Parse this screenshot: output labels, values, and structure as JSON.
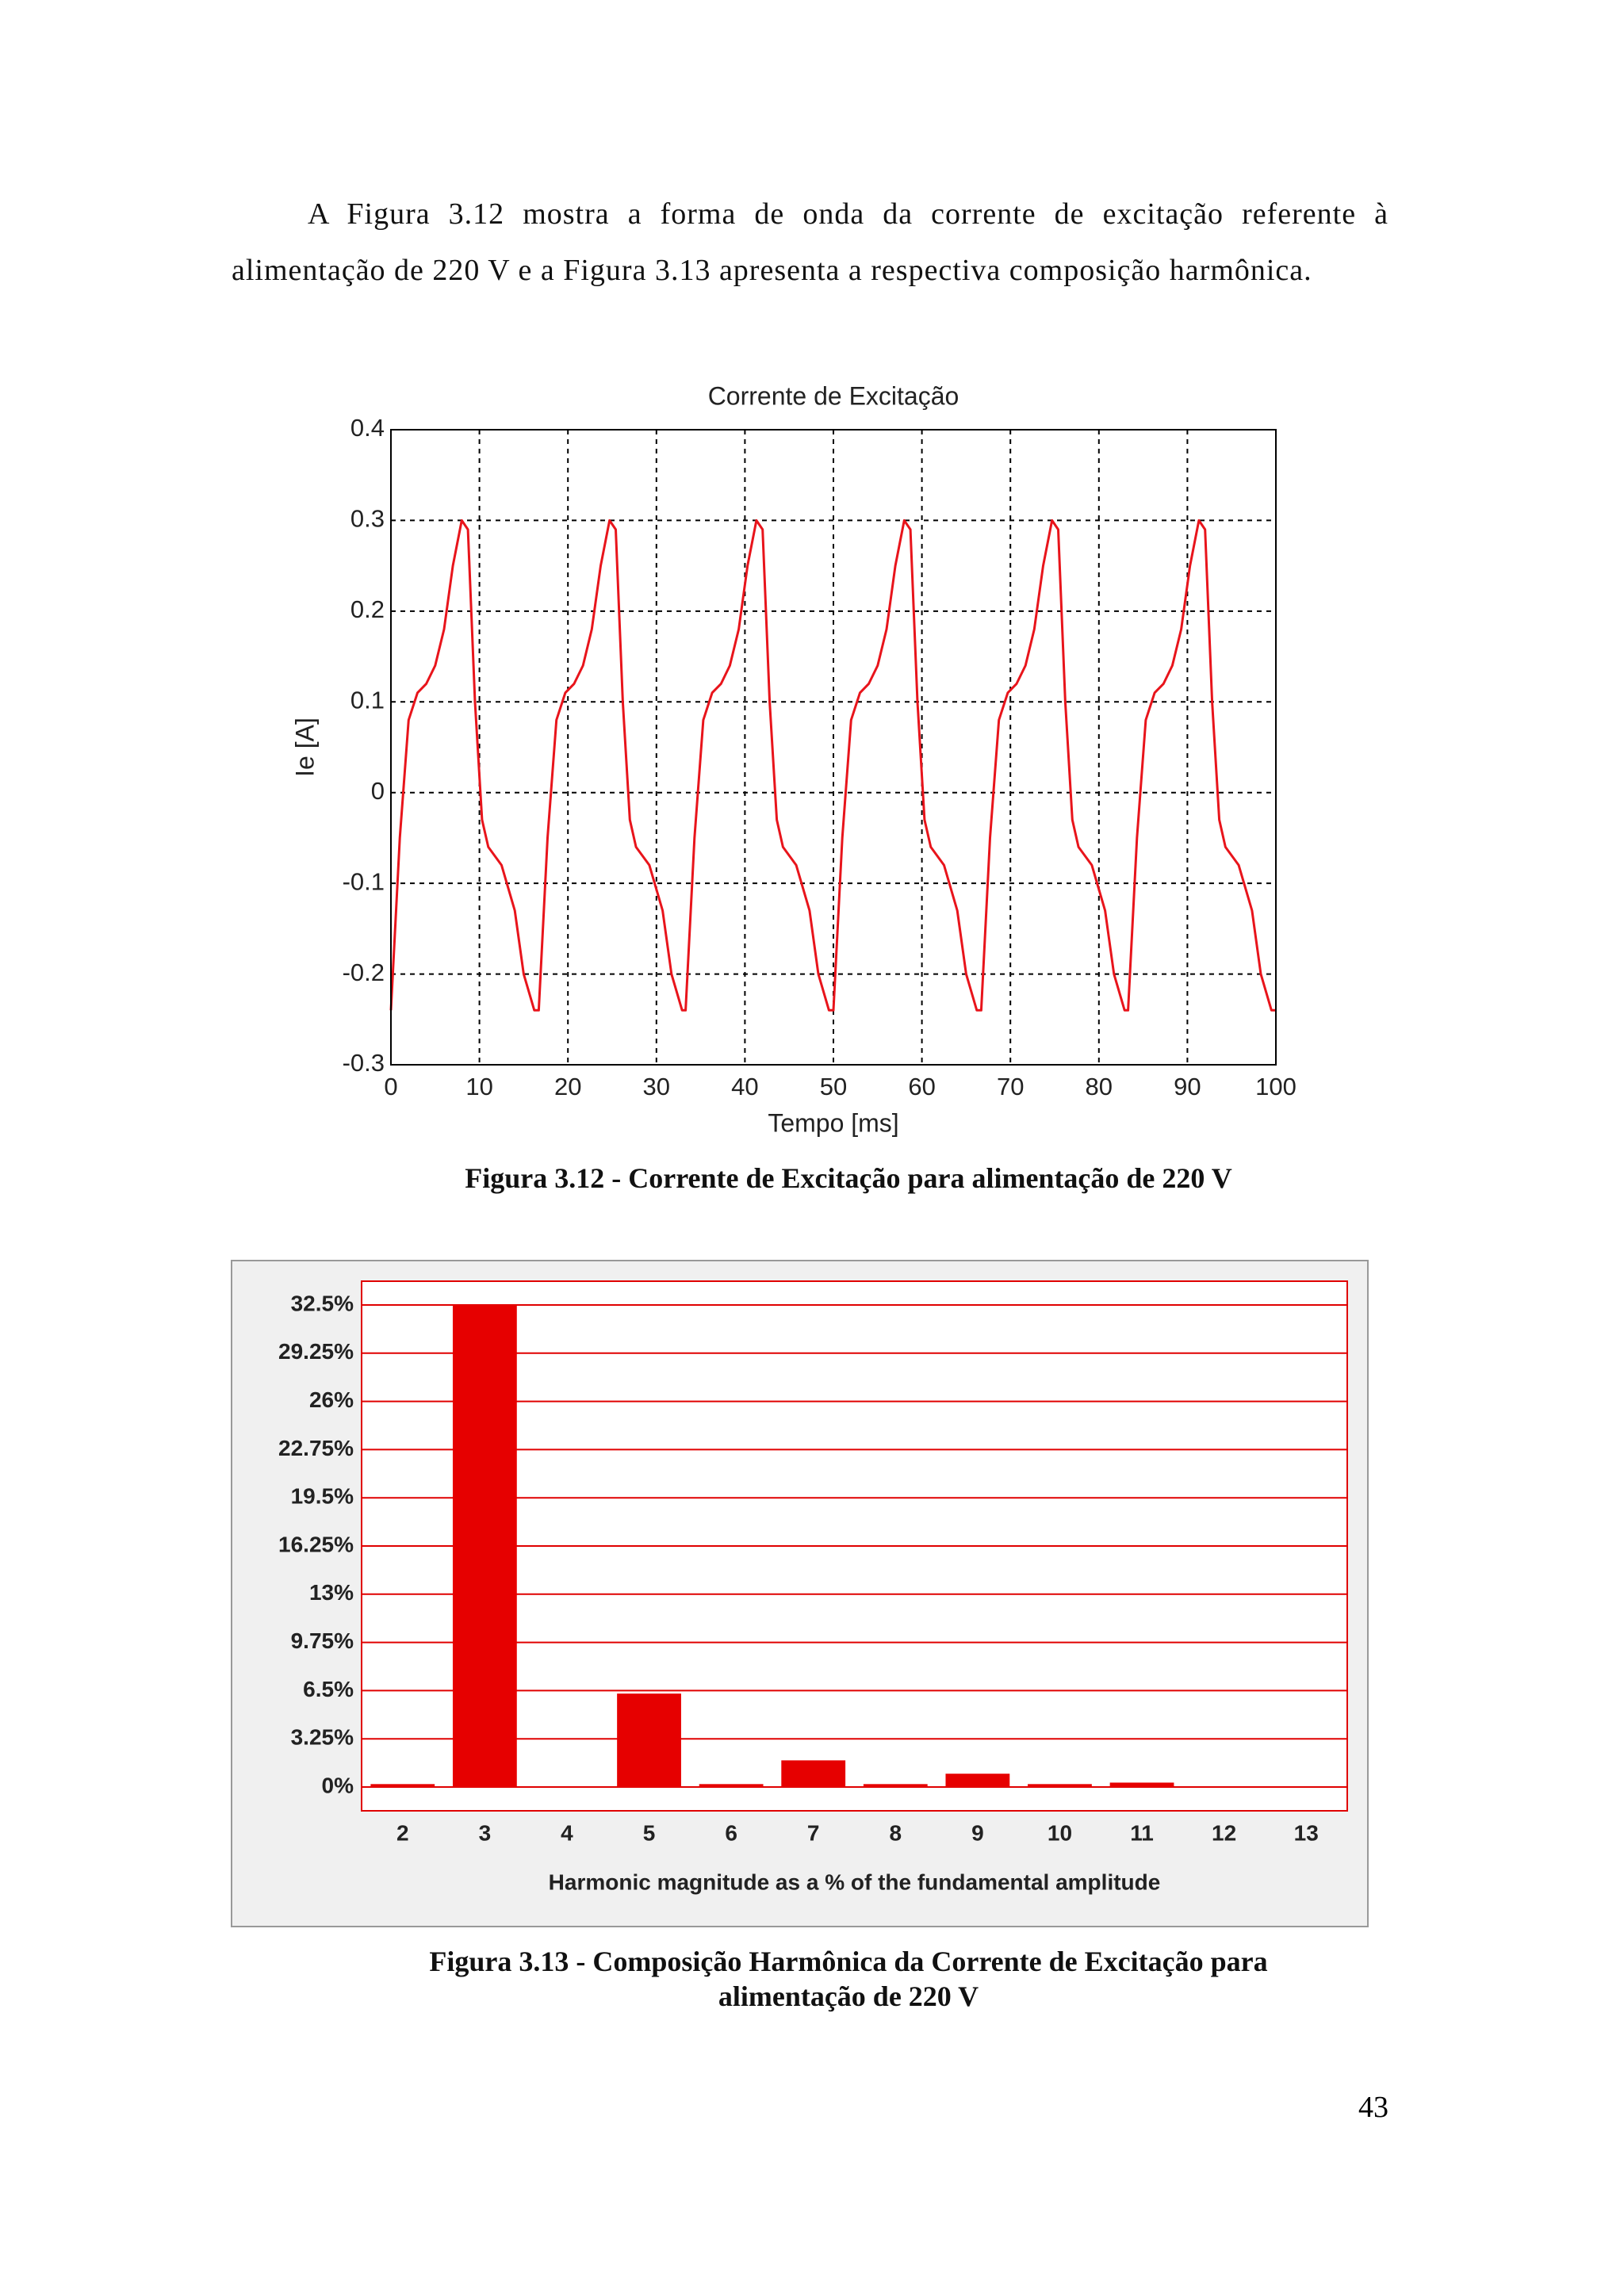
{
  "paragraph": "A Figura 3.12 mostra a forma de onda da corrente de excitação referente à alimentação de 220 V e a Figura 3.13 apresenta a respectiva composição harmônica.",
  "chart_data": [
    {
      "type": "line",
      "title": "Corrente de Excitação",
      "x_label": "Tempo [ms]",
      "y_label": "Ie [A]",
      "x": [
        0,
        1,
        2,
        3,
        4,
        5,
        6,
        7,
        8,
        8.7,
        9.5,
        10.3,
        11,
        12.5,
        14,
        15,
        16.2,
        16.7,
        17.7,
        18.7,
        19.7,
        20.7,
        21.7,
        22.7,
        23.7,
        24.7,
        25.4,
        26.2,
        27,
        27.7,
        29.2,
        30.7,
        31.7,
        32.9,
        33.3,
        34.3,
        35.3,
        36.3,
        37.3,
        38.3,
        39.3,
        40.3,
        41.3,
        42,
        42.8,
        43.6,
        44.3,
        45.8,
        47.3,
        48.3,
        49.5,
        50,
        51,
        52,
        53,
        54,
        55,
        56,
        57,
        58,
        58.7,
        59.5,
        60.3,
        61,
        62.5,
        64,
        65,
        66.2,
        66.7,
        67.7,
        68.7,
        69.7,
        70.7,
        71.7,
        72.7,
        73.7,
        74.7,
        75.4,
        76.2,
        77,
        77.7,
        79.2,
        80.7,
        81.7,
        82.9,
        83.3,
        84.3,
        85.3,
        86.3,
        87.3,
        88.3,
        89.3,
        90.3,
        91.3,
        92,
        92.8,
        93.6,
        94.3,
        95.8,
        97.3,
        98.3,
        99.5,
        100
      ],
      "values": [
        -0.24,
        -0.05,
        0.08,
        0.11,
        0.12,
        0.14,
        0.18,
        0.25,
        0.3,
        0.29,
        0.1,
        -0.03,
        -0.06,
        -0.08,
        -0.13,
        -0.2,
        -0.24,
        -0.24,
        -0.05,
        0.08,
        0.11,
        0.12,
        0.14,
        0.18,
        0.25,
        0.3,
        0.29,
        0.1,
        -0.03,
        -0.06,
        -0.08,
        -0.13,
        -0.2,
        -0.24,
        -0.24,
        -0.05,
        0.08,
        0.11,
        0.12,
        0.14,
        0.18,
        0.25,
        0.3,
        0.29,
        0.1,
        -0.03,
        -0.06,
        -0.08,
        -0.13,
        -0.2,
        -0.24,
        -0.24,
        -0.05,
        0.08,
        0.11,
        0.12,
        0.14,
        0.18,
        0.25,
        0.3,
        0.29,
        0.1,
        -0.03,
        -0.06,
        -0.08,
        -0.13,
        -0.2,
        -0.24,
        -0.24,
        -0.05,
        0.08,
        0.11,
        0.12,
        0.14,
        0.18,
        0.25,
        0.3,
        0.29,
        0.1,
        -0.03,
        -0.06,
        -0.08,
        -0.13,
        -0.2,
        -0.24,
        -0.24,
        -0.05,
        0.08,
        0.11,
        0.12,
        0.14,
        0.18,
        0.25,
        0.3,
        0.29,
        0.1,
        -0.03,
        -0.06,
        -0.08,
        -0.13,
        -0.2,
        -0.24,
        -0.24
      ],
      "color": "#e8141b",
      "xlim": [
        0,
        100
      ],
      "xticks": [
        0,
        10,
        20,
        30,
        40,
        50,
        60,
        70,
        80,
        90,
        100
      ],
      "ylim": [
        -0.3,
        0.4
      ],
      "yticks": [
        0.4,
        0.3,
        0.2,
        0.1,
        0,
        -0.1,
        -0.2,
        -0.3
      ],
      "grid": true,
      "grid_color": "#000000"
    },
    {
      "type": "bar",
      "x_label": "Harmonic magnitude as a % of the fundamental amplitude",
      "categories": [
        "2",
        "3",
        "4",
        "5",
        "6",
        "7",
        "8",
        "9",
        "10",
        "11",
        "12",
        "13"
      ],
      "values": [
        0.2,
        32.5,
        0,
        6.3,
        0.2,
        1.8,
        0.2,
        0.9,
        0.2,
        0.3,
        0,
        0
      ],
      "color": "#e60000",
      "ylim": [
        -1.6,
        34.1
      ],
      "yticks": [
        {
          "value": 32.5,
          "label": "32.5%"
        },
        {
          "value": 29.25,
          "label": "29.25%"
        },
        {
          "value": 26,
          "label": "26%"
        },
        {
          "value": 22.75,
          "label": "22.75%"
        },
        {
          "value": 19.5,
          "label": "19.5%"
        },
        {
          "value": 16.25,
          "label": "16.25%"
        },
        {
          "value": 13,
          "label": "13%"
        },
        {
          "value": 9.75,
          "label": "9.75%"
        },
        {
          "value": 6.5,
          "label": "6.5%"
        },
        {
          "value": 3.25,
          "label": "3.25%"
        },
        {
          "value": 0,
          "label": "0%"
        }
      ],
      "grid": true,
      "grid_color": "#e00000"
    }
  ],
  "captions": [
    "Figura 3.12 - Corrente de Excitação para alimentação de 220 V",
    "Figura 3.13 - Composição Harmônica da Corrente de Excitação para alimentação de 220 V"
  ],
  "page_number": "43"
}
